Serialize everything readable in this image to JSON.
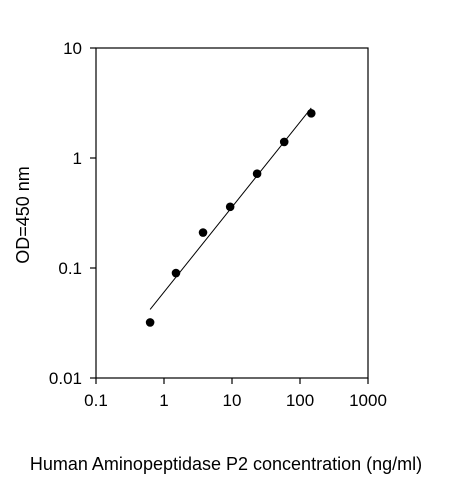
{
  "chart_data": {
    "type": "scatter",
    "title": "",
    "xlabel": "Human Aminopeptidase P2 concentration (ng/ml)",
    "ylabel": "OD=450 nm",
    "x_scale": "log",
    "y_scale": "log",
    "xlim": [
      0.1,
      1000
    ],
    "ylim": [
      0.01,
      10
    ],
    "x_ticks": [
      0.1,
      1,
      10,
      100,
      1000
    ],
    "x_tick_labels": [
      "0.1",
      "1",
      "10",
      "100",
      "1000"
    ],
    "y_ticks": [
      0.01,
      0.1,
      1,
      10
    ],
    "y_tick_labels": [
      "0.01",
      "0.1",
      "1",
      "10"
    ],
    "grid": false,
    "legend": "none",
    "series": [
      {
        "x": [
          0.625,
          1.5,
          3.75,
          9.4,
          23.4,
          58.6,
          146.5
        ],
        "y": [
          0.032,
          0.09,
          0.21,
          0.36,
          0.72,
          1.4,
          2.55
        ]
      }
    ],
    "fit_line": {
      "x": [
        0.625,
        146.5
      ],
      "y": [
        0.042,
        2.85
      ]
    },
    "colors": {
      "points": "#000000",
      "line": "#000000",
      "axes": "#000000"
    }
  }
}
